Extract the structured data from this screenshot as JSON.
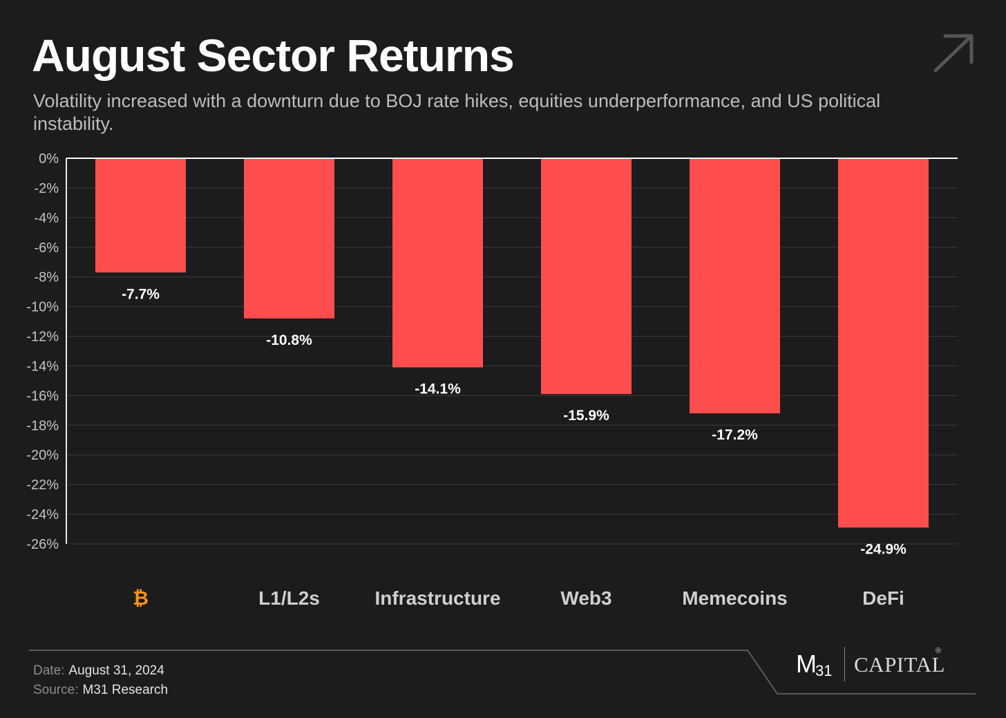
{
  "header": {
    "title": "August Sector Returns",
    "subtitle": "Volatility increased with a downturn due to BOJ rate hikes, equities underperformance, and US political instability."
  },
  "icons": {
    "top_right": "arrow-up-right-icon",
    "bitcoin": "bitcoin-icon"
  },
  "colors": {
    "bar": "#ff4d4d",
    "background": "#1c1c1c",
    "bitcoin": "#f7931a",
    "grid": "#3b3b3b"
  },
  "chart_data": {
    "type": "bar",
    "categories": [
      "₿",
      "L1/L2s",
      "Infrastructure",
      "Web3",
      "Memecoins",
      "DeFi"
    ],
    "values": [
      -7.7,
      -10.8,
      -14.1,
      -15.9,
      -17.2,
      -24.9
    ],
    "data_labels": [
      "-7.7%",
      "-10.8%",
      "-14.1%",
      "-15.9%",
      "-17.2%",
      "-24.9%"
    ],
    "ylim": [
      -26,
      0
    ],
    "yticks": [
      "0%",
      "-2%",
      "-4%",
      "-6%",
      "-8%",
      "-10%",
      "-12%",
      "-14%",
      "-16%",
      "-18%",
      "-20%",
      "-22%",
      "-24%",
      "-26%"
    ],
    "grid": true,
    "legend": "none"
  },
  "footer": {
    "date_key": "Date:",
    "date_value": "August 31, 2024",
    "source_key": "Source:",
    "source_value": "M31 Research"
  },
  "logo": {
    "m": "M",
    "sub": "31",
    "capital": "CAPITAL",
    "reg": "®"
  }
}
